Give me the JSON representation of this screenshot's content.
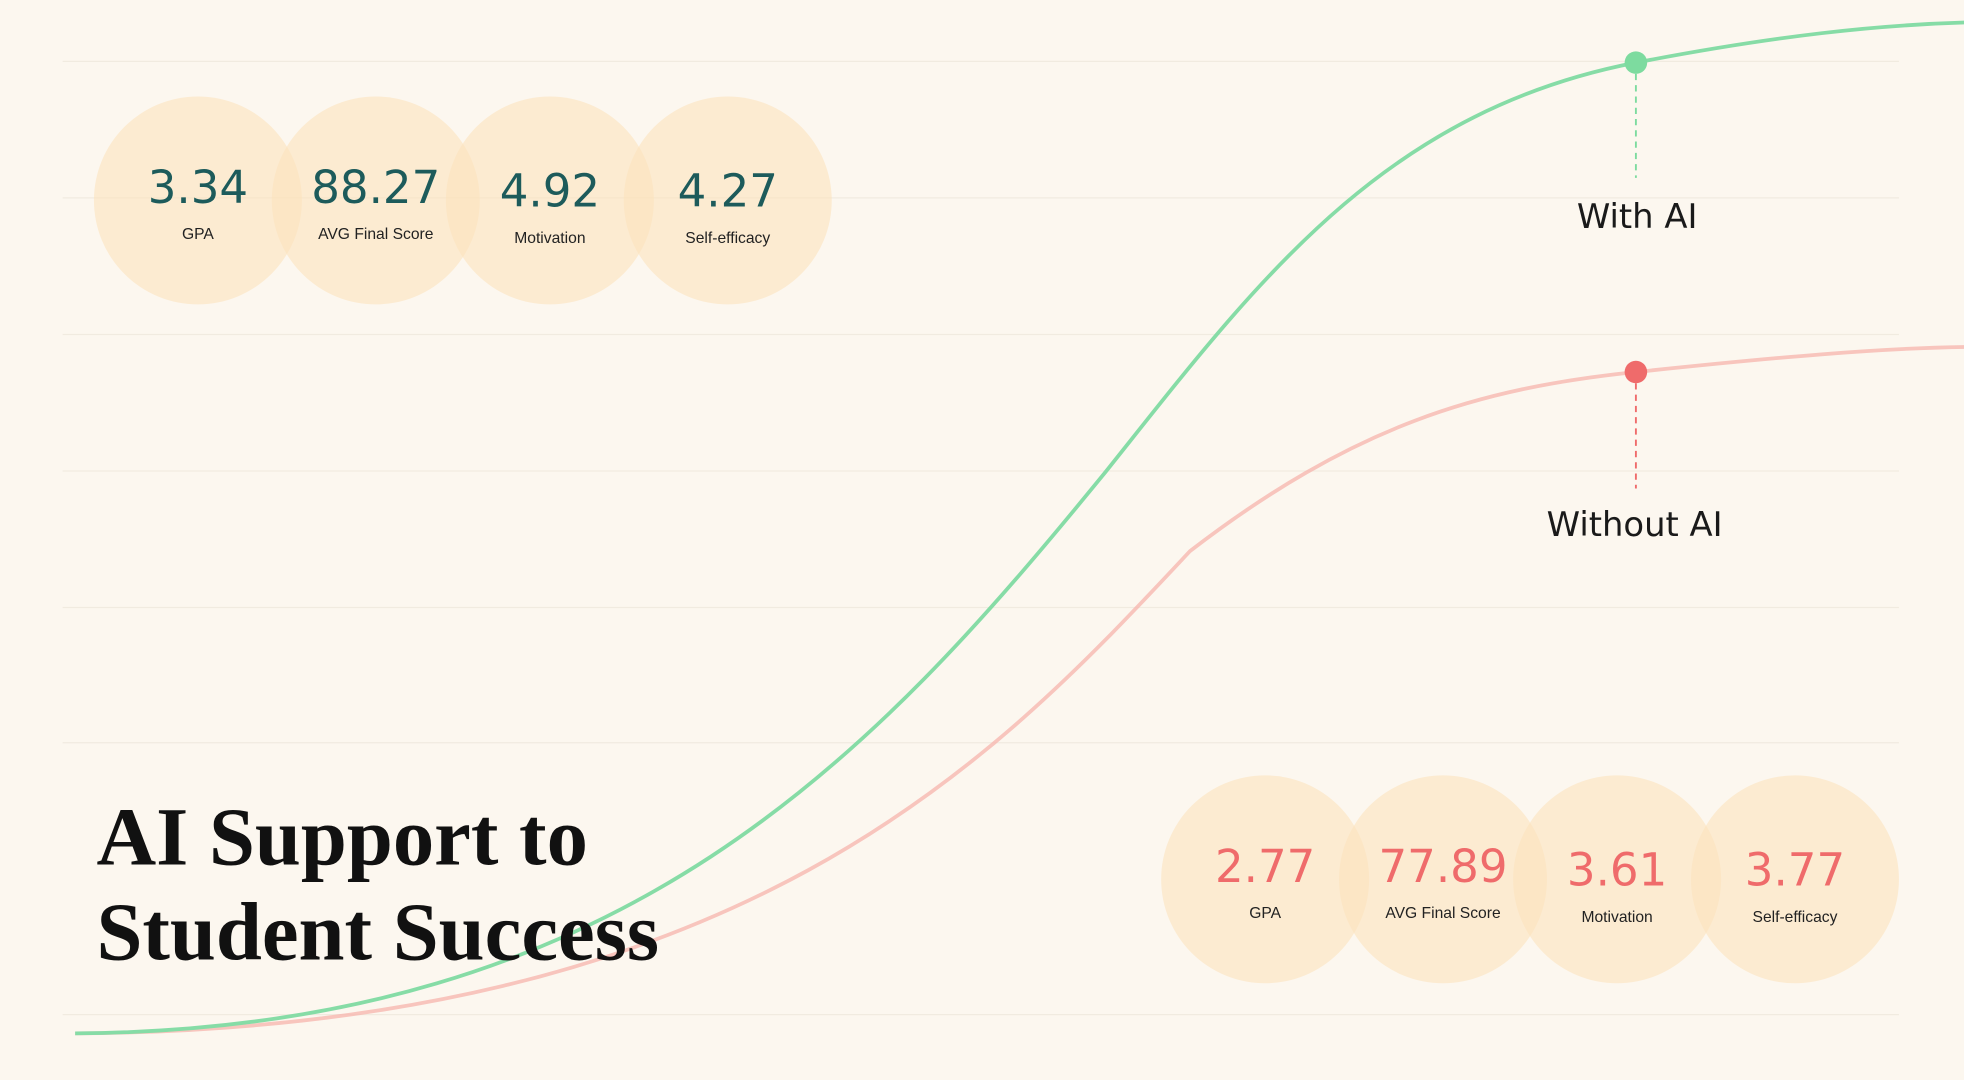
{
  "title": {
    "line1": "AI Support to",
    "line2": "Student Success"
  },
  "with_ai": {
    "label": "With AI",
    "stats": [
      {
        "value": "3.34",
        "label": "GPA"
      },
      {
        "value": "88.27",
        "label": "AVG Final Score"
      },
      {
        "value": "4.92",
        "label": "Motivation"
      },
      {
        "value": "4.27",
        "label": "Self-efficacy"
      }
    ]
  },
  "without_ai": {
    "label": "Without AI",
    "stats": [
      {
        "value": "2.77",
        "label": "GPA"
      },
      {
        "value": "77.89",
        "label": "AVG Final Score"
      },
      {
        "value": "3.61",
        "label": "Motivation"
      },
      {
        "value": "3.77",
        "label": "Self-efficacy"
      }
    ]
  }
}
